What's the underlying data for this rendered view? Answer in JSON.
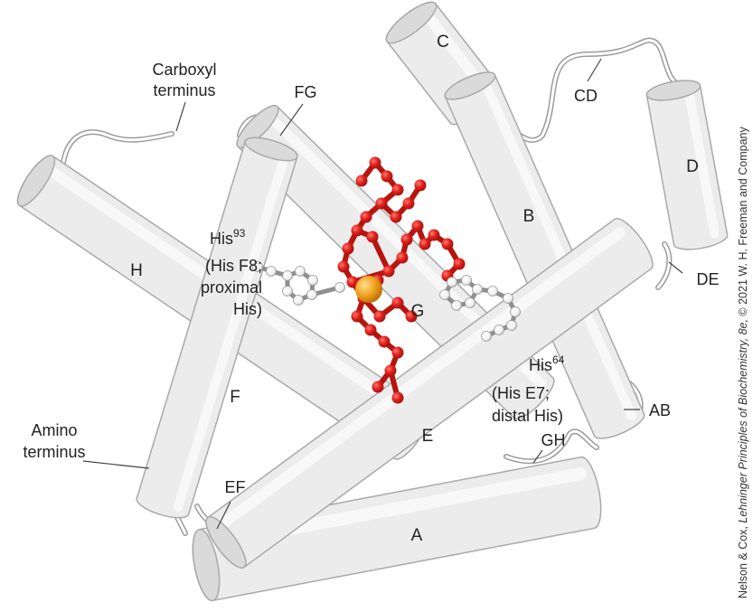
{
  "colors": {
    "helix_fill": "#ececec",
    "helix_stroke": "#a9a9a9",
    "heme": "#e3201b",
    "iron": "#f0a01e",
    "histidine": "#ffffff"
  },
  "helices": {
    "A": "A",
    "B": "B",
    "C": "C",
    "D": "D",
    "E": "E",
    "F": "F",
    "G": "G",
    "H": "H"
  },
  "loops": {
    "AB": "AB",
    "CD": "CD",
    "DE": "DE",
    "EF": "EF",
    "FG": "FG",
    "GH": "GH"
  },
  "termini": {
    "carboxyl": [
      "Carboxyl",
      "terminus"
    ],
    "amino": [
      "Amino",
      "terminus"
    ]
  },
  "his93": {
    "name": "His",
    "sup": "93",
    "lines": [
      "(His F8;",
      "proximal",
      "His)"
    ]
  },
  "his64": {
    "name": "His",
    "sup": "64",
    "lines": [
      "(His E7;",
      "distal His)"
    ]
  },
  "credit": {
    "prefix": "Nelson & Cox, ",
    "title": "Lehninger Principles of Biochemistry, 8e,",
    "suffix": " © 2021 W. H. Freeman and Company"
  }
}
